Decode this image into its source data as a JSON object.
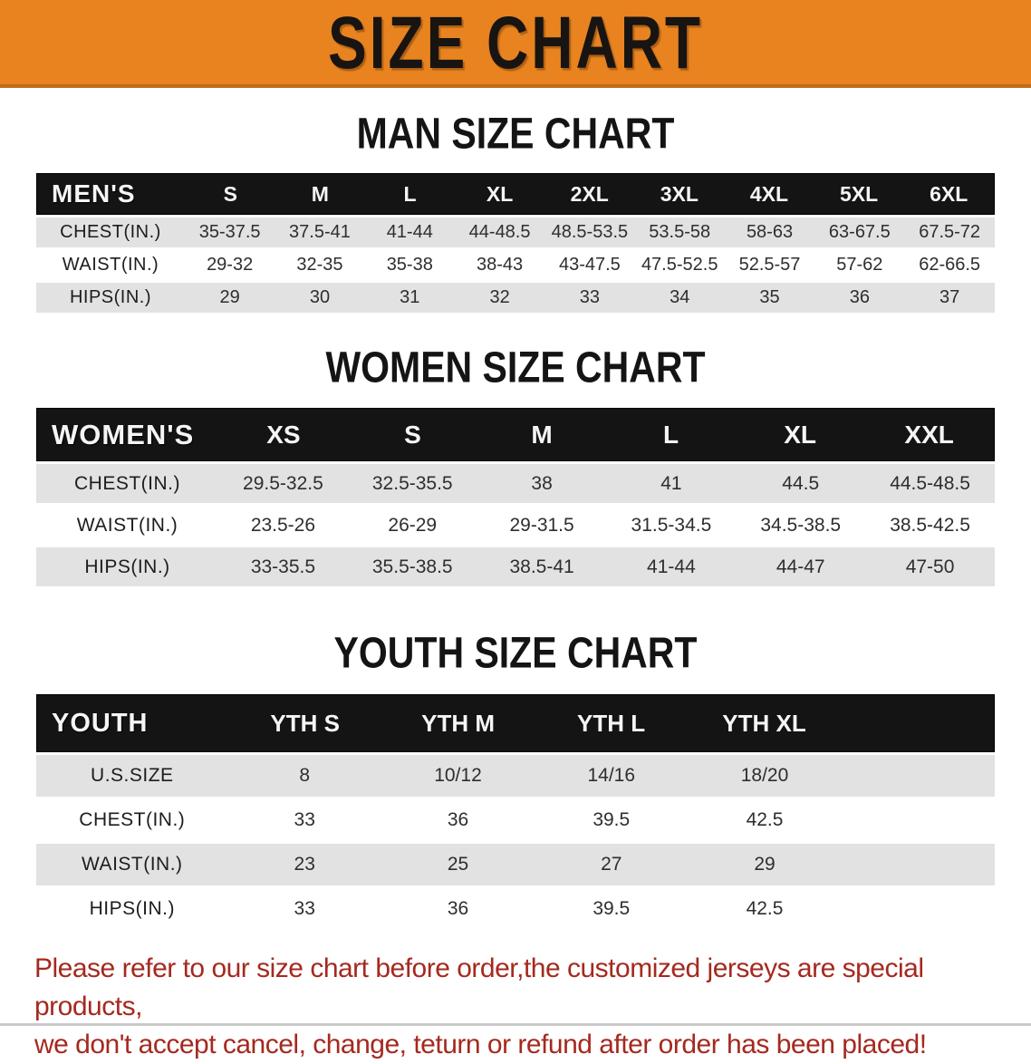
{
  "banner": {
    "title": "SIZE CHART",
    "background_color": "#E8831F"
  },
  "colors": {
    "header_bar": "#141414",
    "row_stripe": "#E2E2E2",
    "disclaimer_text": "#A5291F"
  },
  "sections": [
    {
      "heading": "MAN SIZE CHART",
      "table": {
        "header_label": "MEN'S",
        "columns": [
          "S",
          "M",
          "L",
          "XL",
          "2XL",
          "3XL",
          "4XL",
          "5XL",
          "6XL"
        ],
        "rows": [
          {
            "label": "CHEST(IN.)",
            "values": [
              "35-37.5",
              "37.5-41",
              "41-44",
              "44-48.5",
              "48.5-53.5",
              "53.5-58",
              "58-63",
              "63-67.5",
              "67.5-72"
            ]
          },
          {
            "label": "WAIST(IN.)",
            "values": [
              "29-32",
              "32-35",
              "35-38",
              "38-43",
              "43-47.5",
              "47.5-52.5",
              "52.5-57",
              "57-62",
              "62-66.5"
            ]
          },
          {
            "label": "HIPS(IN.)",
            "values": [
              "29",
              "30",
              "31",
              "32",
              "33",
              "34",
              "35",
              "36",
              "37"
            ]
          }
        ]
      }
    },
    {
      "heading": "WOMEN SIZE CHART",
      "table": {
        "header_label": "WOMEN'S",
        "columns": [
          "XS",
          "S",
          "M",
          "L",
          "XL",
          "XXL"
        ],
        "rows": [
          {
            "label": "CHEST(IN.)",
            "values": [
              "29.5-32.5",
              "32.5-35.5",
              "38",
              "41",
              "44.5",
              "44.5-48.5"
            ]
          },
          {
            "label": "WAIST(IN.)",
            "values": [
              "23.5-26",
              "26-29",
              "29-31.5",
              "31.5-34.5",
              "34.5-38.5",
              "38.5-42.5"
            ]
          },
          {
            "label": "HIPS(IN.)",
            "values": [
              "33-35.5",
              "35.5-38.5",
              "38.5-41",
              "41-44",
              "44-47",
              "47-50"
            ]
          }
        ]
      }
    },
    {
      "heading": "YOUTH SIZE CHART",
      "table": {
        "header_label": "YOUTH",
        "columns": [
          "YTH S",
          "YTH M",
          "YTH L",
          "YTH XL"
        ],
        "rows": [
          {
            "label": "U.S.SIZE",
            "values": [
              "8",
              "10/12",
              "14/16",
              "18/20"
            ]
          },
          {
            "label": "CHEST(IN.)",
            "values": [
              "33",
              "36",
              "39.5",
              "42.5"
            ]
          },
          {
            "label": "WAIST(IN.)",
            "values": [
              "23",
              "25",
              "27",
              "29"
            ]
          },
          {
            "label": "HIPS(IN.)",
            "values": [
              "33",
              "36",
              "39.5",
              "42.5"
            ]
          }
        ]
      }
    }
  ],
  "disclaimer": {
    "line1": "Please refer to our size chart before order,the customized jerseys are special products,",
    "line2": "we don't accept cancel, change, teturn or refund after order has been placed!"
  }
}
